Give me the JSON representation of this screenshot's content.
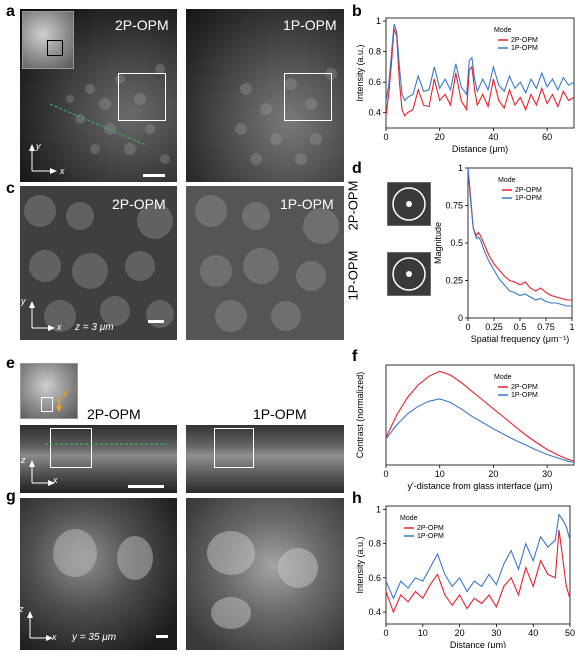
{
  "panel_letters": {
    "a": "a",
    "b": "b",
    "c": "c",
    "d": "d",
    "e": "e",
    "f": "f",
    "g": "g",
    "h": "h"
  },
  "image_labels": {
    "a_left": "2P-OPM",
    "a_right": "1P-OPM",
    "c_left": "2P-OPM",
    "c_right": "1P-OPM",
    "e_left": "2P-OPM",
    "e_right": "1P-OPM",
    "d_top": "2P-OPM",
    "d_bottom": "1P-OPM"
  },
  "annotations": {
    "c_z": "z = 3 μm",
    "g_y": "y = 35 μm",
    "e_yprime": "y'",
    "axis_x": "x",
    "axis_y": "y",
    "axis_z": "z"
  },
  "colors": {
    "red": "#e8202a",
    "blue": "#3a78c8"
  },
  "chart_data": [
    {
      "id": "b",
      "type": "line",
      "xlabel": "Distance (μm)",
      "ylabel": "Intensity (a.u.)",
      "xlim": [
        0,
        70
      ],
      "ylim": [
        0.3,
        1.02
      ],
      "xticks": [
        0,
        20,
        40,
        60
      ],
      "yticks": [
        0.4,
        0.6,
        0.8,
        1.0
      ],
      "ytick_labels": [
        "0.4",
        "0.6",
        "0.8",
        "1"
      ],
      "legend_title": "Mode",
      "legend_position": "top-right",
      "series": [
        {
          "name": "2P-OPM",
          "color": "#e8202a",
          "x": [
            0,
            1,
            2,
            3,
            4,
            5,
            6,
            7,
            8,
            10,
            12,
            14,
            16,
            18,
            20,
            22,
            24,
            26,
            28,
            30,
            31,
            32,
            33,
            34,
            36,
            38,
            40,
            42,
            44,
            46,
            48,
            50,
            52,
            54,
            56,
            58,
            60,
            62,
            64,
            66,
            68,
            70
          ],
          "y": [
            0.38,
            0.52,
            0.72,
            0.95,
            0.9,
            0.6,
            0.42,
            0.38,
            0.4,
            0.42,
            0.55,
            0.45,
            0.44,
            0.62,
            0.48,
            0.52,
            0.45,
            0.66,
            0.48,
            0.42,
            0.68,
            0.7,
            0.55,
            0.45,
            0.52,
            0.44,
            0.62,
            0.48,
            0.43,
            0.55,
            0.45,
            0.5,
            0.42,
            0.52,
            0.45,
            0.56,
            0.46,
            0.52,
            0.44,
            0.54,
            0.48,
            0.5
          ]
        },
        {
          "name": "1P-OPM",
          "color": "#3a78c8",
          "x": [
            0,
            1,
            2,
            3,
            4,
            5,
            6,
            7,
            8,
            10,
            12,
            14,
            16,
            18,
            20,
            22,
            24,
            26,
            28,
            30,
            31,
            32,
            33,
            34,
            36,
            38,
            40,
            42,
            44,
            46,
            48,
            50,
            52,
            54,
            56,
            58,
            60,
            62,
            64,
            66,
            68,
            70
          ],
          "y": [
            0.47,
            0.58,
            0.78,
            0.98,
            0.93,
            0.7,
            0.52,
            0.48,
            0.5,
            0.52,
            0.64,
            0.54,
            0.55,
            0.7,
            0.56,
            0.62,
            0.55,
            0.72,
            0.57,
            0.52,
            0.74,
            0.76,
            0.62,
            0.54,
            0.62,
            0.55,
            0.7,
            0.58,
            0.54,
            0.64,
            0.56,
            0.6,
            0.53,
            0.62,
            0.56,
            0.66,
            0.57,
            0.62,
            0.55,
            0.63,
            0.58,
            0.6
          ]
        }
      ]
    },
    {
      "id": "d",
      "type": "line",
      "xlabel": "Spatial frequency (μm⁻¹)",
      "ylabel": "Magnitude",
      "xlim": [
        0,
        1
      ],
      "ylim": [
        0,
        1
      ],
      "xticks": [
        0,
        0.25,
        0.5,
        0.75,
        1
      ],
      "xtick_labels": [
        "0",
        "0.25",
        "0.5",
        "0.75",
        "1"
      ],
      "yticks": [
        0,
        0.25,
        0.5,
        0.75,
        1
      ],
      "ytick_labels": [
        "0",
        "0.25",
        "0.5",
        "0.75",
        "1"
      ],
      "legend_title": "Mode",
      "legend_position": "top-right",
      "series": [
        {
          "name": "2P-OPM",
          "color": "#e8202a",
          "x": [
            0,
            0.02,
            0.05,
            0.08,
            0.1,
            0.12,
            0.15,
            0.2,
            0.25,
            0.3,
            0.35,
            0.4,
            0.45,
            0.5,
            0.55,
            0.6,
            0.65,
            0.7,
            0.75,
            0.8,
            0.85,
            0.9,
            0.95,
            1
          ],
          "y": [
            1,
            0.85,
            0.6,
            0.55,
            0.57,
            0.55,
            0.5,
            0.42,
            0.36,
            0.32,
            0.28,
            0.25,
            0.24,
            0.22,
            0.24,
            0.2,
            0.18,
            0.2,
            0.17,
            0.15,
            0.14,
            0.13,
            0.12,
            0.12
          ]
        },
        {
          "name": "1P-OPM",
          "color": "#3a78c8",
          "x": [
            0,
            0.02,
            0.05,
            0.08,
            0.1,
            0.12,
            0.15,
            0.2,
            0.25,
            0.3,
            0.35,
            0.4,
            0.45,
            0.5,
            0.55,
            0.6,
            0.65,
            0.7,
            0.75,
            0.8,
            0.85,
            0.9,
            0.95,
            1
          ],
          "y": [
            1,
            0.82,
            0.6,
            0.53,
            0.54,
            0.52,
            0.46,
            0.38,
            0.32,
            0.26,
            0.22,
            0.18,
            0.17,
            0.15,
            0.16,
            0.14,
            0.12,
            0.13,
            0.11,
            0.1,
            0.1,
            0.09,
            0.08,
            0.08
          ]
        }
      ]
    },
    {
      "id": "f",
      "type": "line",
      "xlabel": "y'-distance from glass interface (μm)",
      "ylabel": "Contrast (normalized)",
      "xlim": [
        0,
        35
      ],
      "ylim": [
        0,
        4
      ],
      "xticks": [
        0,
        10,
        20,
        30
      ],
      "legend_title": "Mode",
      "legend_position": "top-right",
      "series": [
        {
          "name": "2P-OPM",
          "color": "#e8202a",
          "x": [
            0,
            2,
            4,
            6,
            8,
            10,
            12,
            14,
            16,
            18,
            20,
            22,
            24,
            26,
            28,
            30,
            32,
            34,
            35
          ],
          "y": [
            1.1,
            2.0,
            2.7,
            3.2,
            3.55,
            3.75,
            3.6,
            3.3,
            2.95,
            2.6,
            2.25,
            1.9,
            1.55,
            1.2,
            0.9,
            0.62,
            0.4,
            0.22,
            0.16
          ]
        },
        {
          "name": "1P-OPM",
          "color": "#3a78c8",
          "x": [
            0,
            2,
            4,
            6,
            8,
            10,
            12,
            14,
            16,
            18,
            20,
            22,
            24,
            26,
            28,
            30,
            32,
            34,
            35
          ],
          "y": [
            1.05,
            1.6,
            2.05,
            2.35,
            2.55,
            2.65,
            2.5,
            2.25,
            1.95,
            1.7,
            1.45,
            1.22,
            1.0,
            0.8,
            0.6,
            0.42,
            0.28,
            0.15,
            0.1
          ]
        }
      ]
    },
    {
      "id": "h",
      "type": "line",
      "xlabel": "Distance (μm)",
      "ylabel": "Intensity (a.u.)",
      "xlim": [
        0,
        50
      ],
      "ylim": [
        0.33,
        1.02
      ],
      "xticks": [
        0,
        10,
        20,
        30,
        40,
        50
      ],
      "yticks": [
        0.4,
        0.6,
        0.8,
        1.0
      ],
      "ytick_labels": [
        "0.4",
        "0.6",
        "0.8",
        "1"
      ],
      "legend_title": "Mode",
      "legend_position": "top-left",
      "series": [
        {
          "name": "2P-OPM",
          "color": "#e8202a",
          "x": [
            0,
            2,
            4,
            6,
            8,
            10,
            12,
            14,
            16,
            18,
            20,
            22,
            24,
            26,
            28,
            30,
            32,
            34,
            36,
            38,
            40,
            42,
            44,
            46,
            47,
            48,
            49,
            50
          ],
          "y": [
            0.52,
            0.4,
            0.5,
            0.46,
            0.52,
            0.48,
            0.56,
            0.62,
            0.5,
            0.44,
            0.5,
            0.42,
            0.48,
            0.45,
            0.5,
            0.43,
            0.55,
            0.6,
            0.5,
            0.66,
            0.55,
            0.7,
            0.62,
            0.6,
            0.88,
            0.72,
            0.55,
            0.48
          ]
        },
        {
          "name": "1P-OPM",
          "color": "#3a78c8",
          "x": [
            0,
            2,
            4,
            6,
            8,
            10,
            12,
            14,
            16,
            18,
            20,
            22,
            24,
            26,
            28,
            30,
            32,
            34,
            36,
            38,
            40,
            42,
            44,
            46,
            47,
            48,
            49,
            50
          ],
          "y": [
            0.58,
            0.48,
            0.58,
            0.54,
            0.6,
            0.58,
            0.66,
            0.74,
            0.62,
            0.55,
            0.6,
            0.52,
            0.58,
            0.55,
            0.62,
            0.56,
            0.68,
            0.76,
            0.65,
            0.8,
            0.7,
            0.84,
            0.78,
            0.82,
            0.97,
            0.94,
            0.9,
            0.82
          ]
        }
      ]
    }
  ]
}
